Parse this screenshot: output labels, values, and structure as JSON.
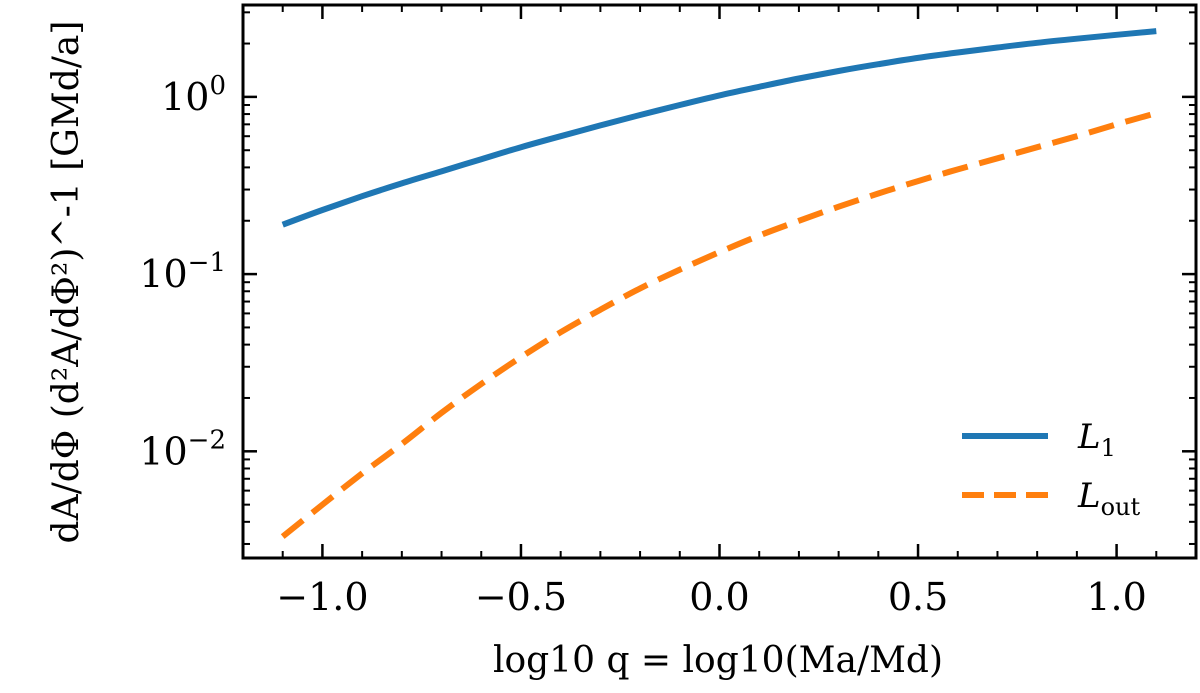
{
  "chart_data": {
    "type": "line",
    "xscale": "linear",
    "yscale": "log",
    "xlim": [
      -1.2,
      1.2
    ],
    "ylim": [
      0.0025,
      3.3
    ],
    "xlabel": "log10 q = log10(Ma/Md)",
    "ylabel": "dA/dΦ (d²A/dΦ²)^-1 [GMd/a]",
    "xticks": [
      {
        "value": -1.0,
        "label": "−1.0"
      },
      {
        "value": -0.5,
        "label": "−0.5"
      },
      {
        "value": 0.0,
        "label": "0.0"
      },
      {
        "value": 0.5,
        "label": "0.5"
      },
      {
        "value": 1.0,
        "label": "1.0"
      }
    ],
    "yticks": [
      {
        "value": 1,
        "base": "10",
        "exp": "0"
      },
      {
        "value": 0.1,
        "base": "10",
        "exp": "−1"
      },
      {
        "value": 0.01,
        "base": "10",
        "exp": "−2"
      }
    ],
    "legend_position": "bottom-right",
    "series": [
      {
        "name": "L1",
        "label_main": "L",
        "label_sub": "1",
        "color": "#1f77b4",
        "style": "solid",
        "x": [
          -1.1,
          -1.0,
          -0.9,
          -0.8,
          -0.7,
          -0.6,
          -0.5,
          -0.4,
          -0.3,
          -0.2,
          -0.1,
          0.0,
          0.1,
          0.2,
          0.3,
          0.4,
          0.5,
          0.6,
          0.7,
          0.8,
          0.9,
          1.0,
          1.1
        ],
        "y": [
          0.19,
          0.23,
          0.275,
          0.325,
          0.38,
          0.445,
          0.52,
          0.6,
          0.69,
          0.79,
          0.9,
          1.02,
          1.14,
          1.27,
          1.4,
          1.53,
          1.66,
          1.78,
          1.9,
          2.02,
          2.13,
          2.24,
          2.35
        ]
      },
      {
        "name": "Lout",
        "label_main": "L",
        "label_sub": "out",
        "color": "#ff7f0e",
        "style": "dashed",
        "x": [
          -1.1,
          -1.0,
          -0.9,
          -0.8,
          -0.7,
          -0.6,
          -0.5,
          -0.4,
          -0.3,
          -0.2,
          -0.1,
          0.0,
          0.1,
          0.2,
          0.3,
          0.4,
          0.5,
          0.6,
          0.7,
          0.8,
          0.9,
          1.0,
          1.1
        ],
        "y": [
          0.0033,
          0.005,
          0.0075,
          0.011,
          0.0165,
          0.024,
          0.034,
          0.047,
          0.063,
          0.083,
          0.106,
          0.133,
          0.165,
          0.2,
          0.24,
          0.285,
          0.335,
          0.39,
          0.45,
          0.52,
          0.6,
          0.7,
          0.81
        ]
      }
    ]
  }
}
